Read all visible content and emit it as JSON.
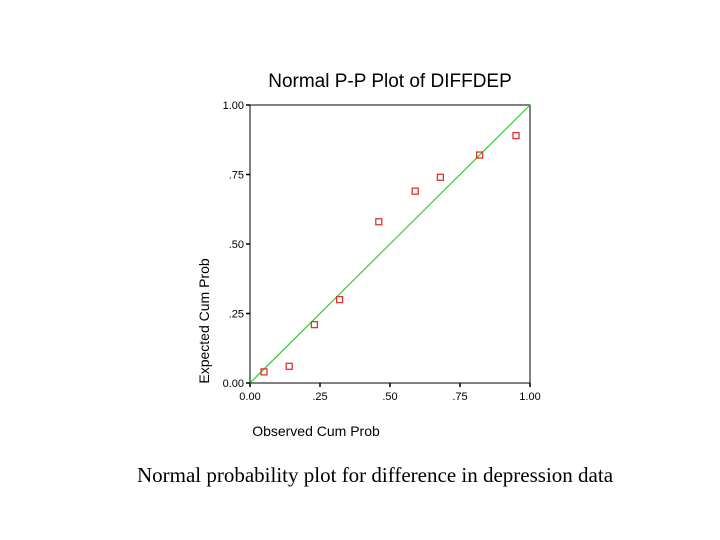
{
  "chart_data": {
    "type": "scatter",
    "title": "Normal P-P Plot of DIFFDEP",
    "xlabel": "Observed Cum Prob",
    "ylabel": "Expected Cum Prob",
    "xlim": [
      0,
      1
    ],
    "ylim": [
      0,
      1
    ],
    "x_ticks": [
      "0.00",
      ".25",
      ".50",
      ".75",
      "1.00"
    ],
    "y_ticks": [
      "0.00",
      ".25",
      ".50",
      ".75",
      "1.00"
    ],
    "grid": false,
    "reference_line": {
      "from": [
        0,
        0
      ],
      "to": [
        1,
        1
      ],
      "color": "#33cc33"
    },
    "marker_color": "#dd3333",
    "points": [
      {
        "x": 0.05,
        "y": 0.04
      },
      {
        "x": 0.14,
        "y": 0.06
      },
      {
        "x": 0.23,
        "y": 0.21
      },
      {
        "x": 0.32,
        "y": 0.3
      },
      {
        "x": 0.46,
        "y": 0.58
      },
      {
        "x": 0.59,
        "y": 0.69
      },
      {
        "x": 0.68,
        "y": 0.74
      },
      {
        "x": 0.82,
        "y": 0.82
      },
      {
        "x": 0.95,
        "y": 0.89
      }
    ]
  },
  "caption": "Normal probability plot for difference in depression data"
}
